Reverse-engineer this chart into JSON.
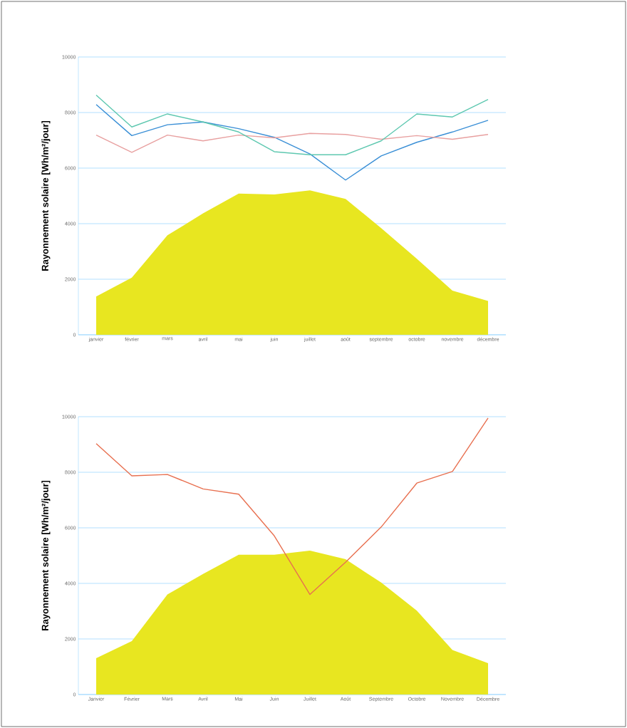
{
  "chart_data": [
    {
      "type": "line",
      "ylabel": "Rayonnement solaire [Wh/m²/jour]",
      "categories": [
        "janvier",
        "février",
        "mars",
        "avril",
        "mai",
        "juin",
        "juillet",
        "août",
        "septembre",
        "octobre",
        "novembre",
        "décembre"
      ],
      "series": [
        {
          "type": "area",
          "color": "#e8e620",
          "values": [
            1380,
            2060,
            3580,
            4370,
            5080,
            5050,
            5200,
            4890,
            3840,
            2740,
            1590,
            1220
          ]
        },
        {
          "color": "#3a8fd6",
          "values": [
            8290,
            7170,
            7560,
            7660,
            7420,
            7110,
            6510,
            5570,
            6440,
            6930,
            7300,
            7720
          ]
        },
        {
          "color": "#e8a0a0",
          "values": [
            7190,
            6570,
            7190,
            6980,
            7190,
            7090,
            7250,
            7210,
            7040,
            7170,
            7040,
            7210
          ]
        },
        {
          "color": "#5ec8b0",
          "values": [
            8630,
            7480,
            7950,
            7660,
            7300,
            6590,
            6480,
            6480,
            6980,
            7950,
            7840,
            8470
          ]
        }
      ],
      "ylim": [
        0,
        10000
      ],
      "yticks": [
        0,
        2000,
        4000,
        6000,
        8000,
        10000
      ],
      "grid": "y"
    },
    {
      "type": "line",
      "ylabel": "Rayonnement solaire [Wh/m²/jour]",
      "categories": [
        "Janvier",
        "Février",
        "Mars",
        "Avril",
        "Mai",
        "Juin",
        "Juillet",
        "Août",
        "Septembre",
        "Octobre",
        "Novembre",
        "Décembre"
      ],
      "series": [
        {
          "type": "area",
          "color": "#e8e620",
          "values": [
            1310,
            1920,
            3600,
            4340,
            5030,
            5030,
            5180,
            4870,
            4030,
            3020,
            1600,
            1130
          ]
        },
        {
          "color": "#e87050",
          "values": [
            9030,
            7870,
            7920,
            7400,
            7210,
            5710,
            3600,
            4760,
            6030,
            7610,
            8030,
            9950
          ]
        }
      ],
      "ylim": [
        0,
        10000
      ],
      "yticks": [
        0,
        2000,
        4000,
        6000,
        8000,
        10000
      ],
      "grid": "y"
    }
  ]
}
